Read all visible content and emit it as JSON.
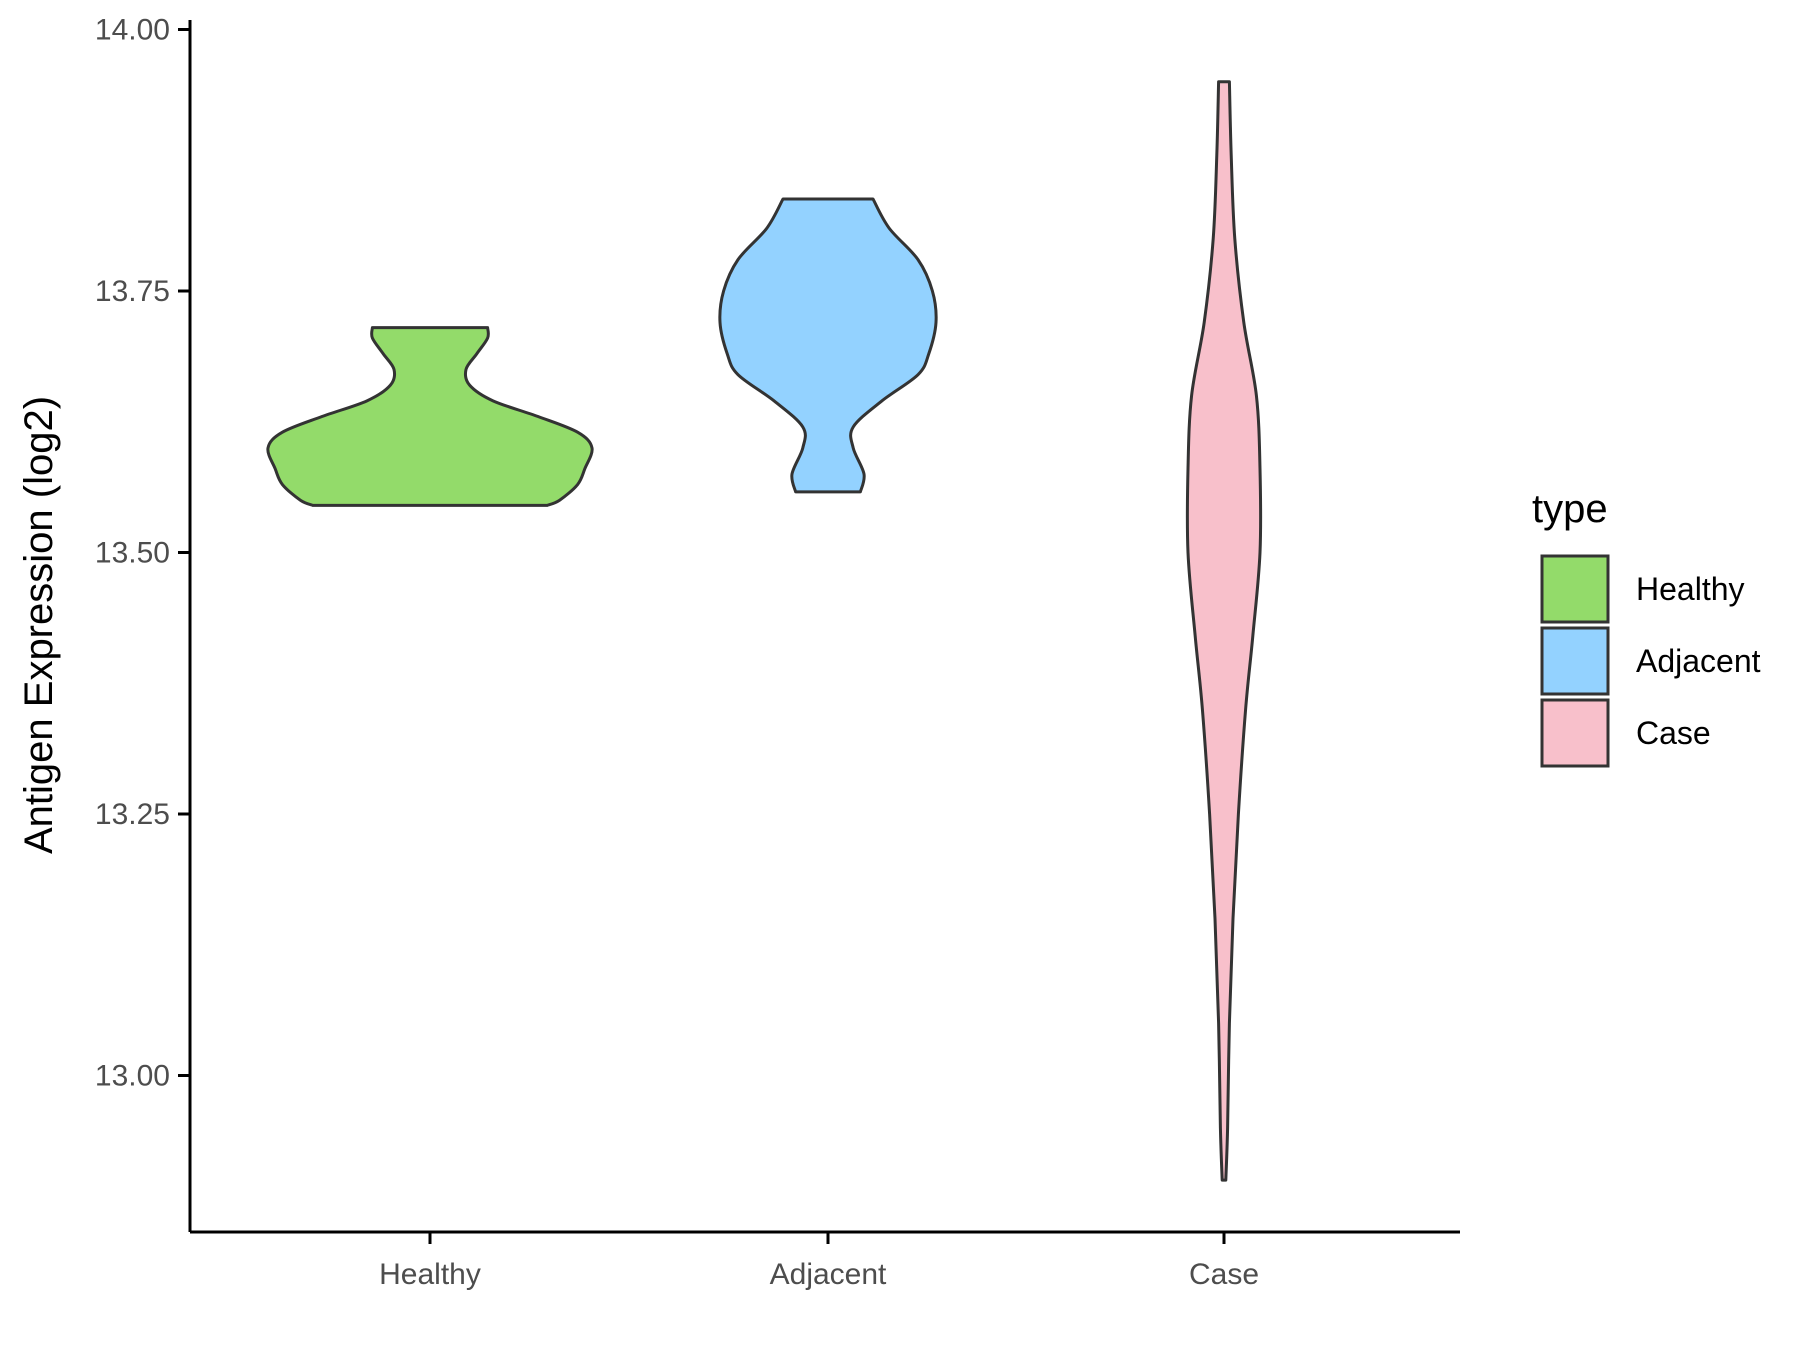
{
  "chart_data": {
    "type": "violin",
    "ylabel": "Antigen Expression (log2)",
    "xlabel": "",
    "ylim": [
      12.9,
      14.0
    ],
    "y_ticks": [
      13.0,
      13.25,
      13.5,
      13.75,
      14.0
    ],
    "y_tick_labels": [
      "13.00",
      "13.25",
      "13.50",
      "13.75",
      "14.00"
    ],
    "categories": [
      "Healthy",
      "Adjacent",
      "Case"
    ],
    "grid": false,
    "legend": {
      "title": "type",
      "position": "right",
      "entries": [
        "Healthy",
        "Adjacent",
        "Case"
      ]
    },
    "series": [
      {
        "category": "Healthy",
        "color": "#93DB6A",
        "y_min": 13.545,
        "y_max": 13.715,
        "profile": [
          [
            13.545,
            0.65
          ],
          [
            13.55,
            0.72
          ],
          [
            13.565,
            0.82
          ],
          [
            13.58,
            0.86
          ],
          [
            13.6,
            0.9
          ],
          [
            13.615,
            0.82
          ],
          [
            13.63,
            0.6
          ],
          [
            13.645,
            0.35
          ],
          [
            13.66,
            0.22
          ],
          [
            13.675,
            0.2
          ],
          [
            13.69,
            0.26
          ],
          [
            13.705,
            0.32
          ],
          [
            13.715,
            0.32
          ]
        ]
      },
      {
        "category": "Adjacent",
        "color": "#93D2FF",
        "y_min": 13.558,
        "y_max": 13.838,
        "profile": [
          [
            13.558,
            0.18
          ],
          [
            13.575,
            0.2
          ],
          [
            13.6,
            0.14
          ],
          [
            13.62,
            0.14
          ],
          [
            13.645,
            0.3
          ],
          [
            13.67,
            0.5
          ],
          [
            13.69,
            0.56
          ],
          [
            13.72,
            0.6
          ],
          [
            13.75,
            0.58
          ],
          [
            13.78,
            0.5
          ],
          [
            13.81,
            0.34
          ],
          [
            13.838,
            0.25
          ]
        ]
      },
      {
        "category": "Case",
        "color": "#F8C0CB",
        "y_min": 12.9,
        "y_max": 13.95,
        "profile": [
          [
            12.9,
            0.01
          ],
          [
            12.95,
            0.02
          ],
          [
            13.05,
            0.03
          ],
          [
            13.15,
            0.05
          ],
          [
            13.25,
            0.08
          ],
          [
            13.35,
            0.12
          ],
          [
            13.42,
            0.16
          ],
          [
            13.5,
            0.2
          ],
          [
            13.58,
            0.2
          ],
          [
            13.65,
            0.18
          ],
          [
            13.72,
            0.11
          ],
          [
            13.8,
            0.06
          ],
          [
            13.88,
            0.04
          ],
          [
            13.95,
            0.03
          ]
        ]
      }
    ]
  }
}
